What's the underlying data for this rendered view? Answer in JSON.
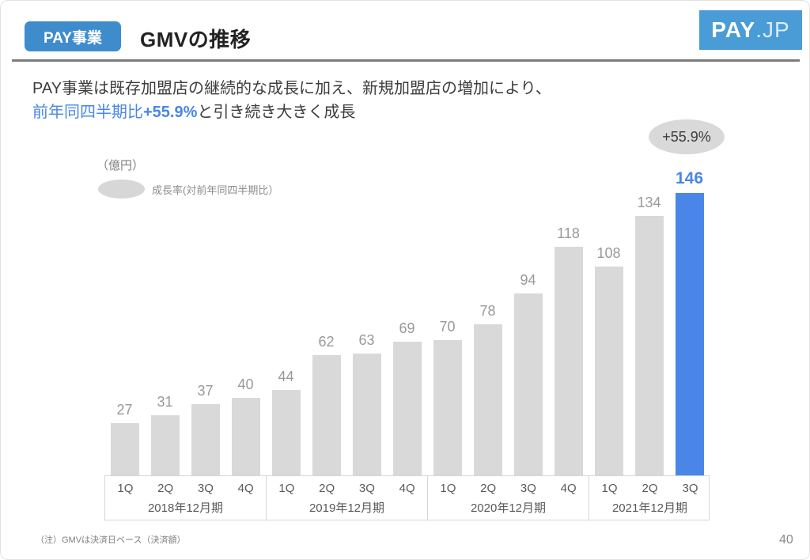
{
  "header": {
    "badge": "PAY事業",
    "title": "GMVの推移",
    "logo_primary": "PAY",
    "logo_secondary": ".JP"
  },
  "lead": {
    "line1": "PAY事業は既存加盟店の継続的な成長に加え、新規加盟店の増加により、",
    "line2_blue": "前年同四半期比",
    "line2_bold": "+55.9%",
    "line2_rest": "と引き続き大きく成長"
  },
  "footer": {
    "footnote": "（注）GMVは決済日ベース（決済額）",
    "page_number": "40"
  },
  "colors": {
    "accent_blue": "#4a86e8",
    "badge_blue": "#3e8ccc",
    "logo_blue": "#4a9cd6",
    "bar_gray": "#d9d9d9"
  },
  "chart_data": {
    "type": "bar",
    "title": "GMVの推移",
    "unit_label": "（億円）",
    "legend_label": "成長率(対前年同四半期比）",
    "growth_badge": "+55.9%",
    "categories": [
      "1Q",
      "2Q",
      "3Q",
      "4Q",
      "1Q",
      "2Q",
      "3Q",
      "4Q",
      "1Q",
      "2Q",
      "3Q",
      "4Q",
      "1Q",
      "2Q",
      "3Q"
    ],
    "values": [
      27,
      31,
      37,
      40,
      44,
      62,
      63,
      69,
      70,
      78,
      94,
      118,
      108,
      134,
      146
    ],
    "groups": [
      {
        "label": "2018年12月期",
        "quarters": [
          "1Q",
          "2Q",
          "3Q",
          "4Q"
        ],
        "values": [
          27,
          31,
          37,
          40
        ]
      },
      {
        "label": "2019年12月期",
        "quarters": [
          "1Q",
          "2Q",
          "3Q",
          "4Q"
        ],
        "values": [
          44,
          62,
          63,
          69
        ]
      },
      {
        "label": "2020年12月期",
        "quarters": [
          "1Q",
          "2Q",
          "3Q",
          "4Q"
        ],
        "values": [
          70,
          78,
          94,
          118
        ]
      },
      {
        "label": "2021年12月期",
        "quarters": [
          "1Q",
          "2Q",
          "3Q"
        ],
        "values": [
          108,
          134,
          146
        ]
      }
    ],
    "highlight_index": 14,
    "bar_color": "#d9d9d9",
    "highlight_color": "#4a86e8",
    "value_label_color": "#999999",
    "ylim": [
      0,
      150
    ],
    "grid": false,
    "legend_position": "top-left"
  }
}
